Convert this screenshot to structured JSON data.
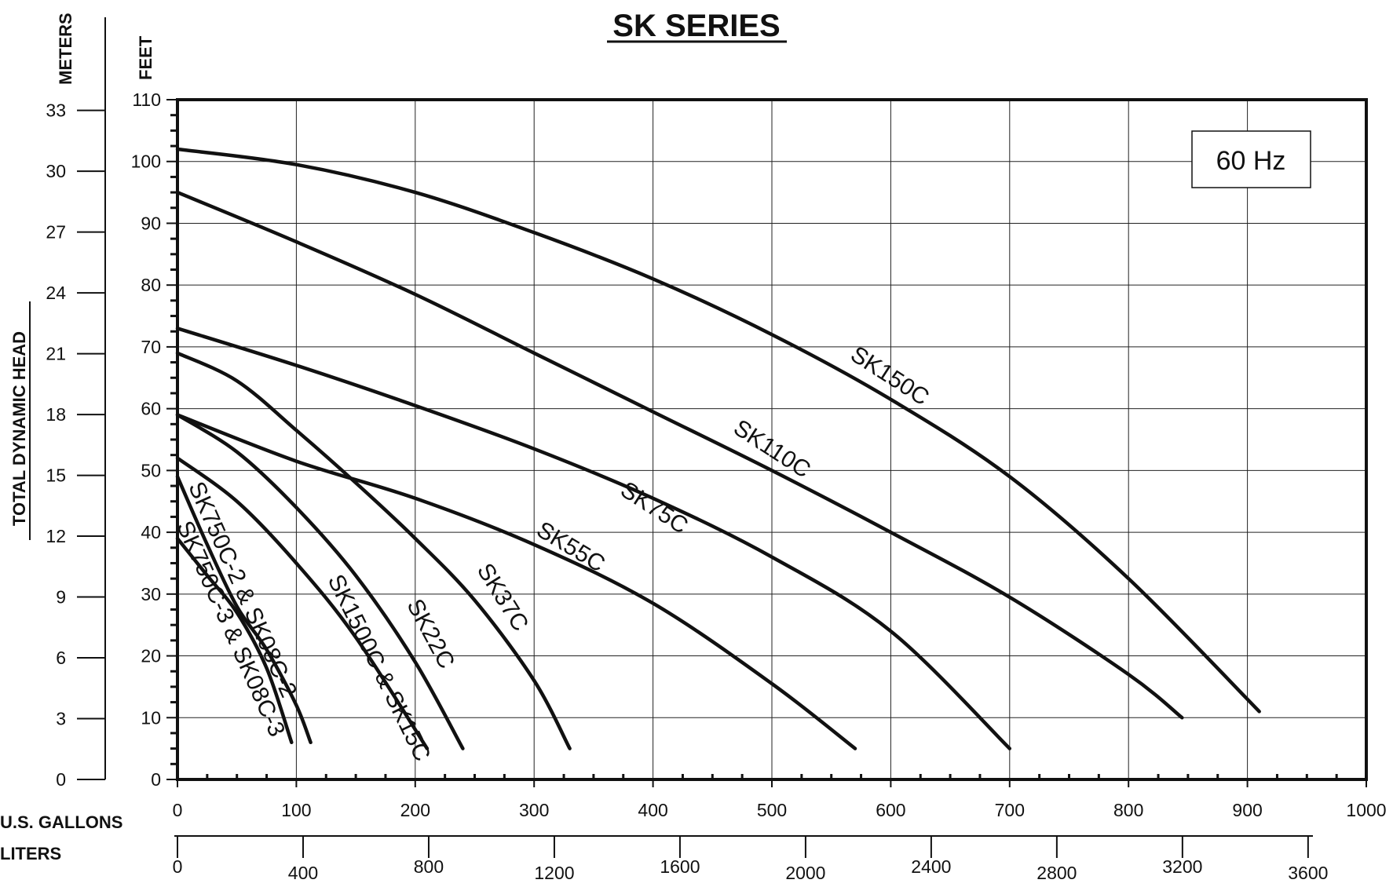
{
  "chart_data": {
    "type": "line",
    "title": "SK SERIES",
    "annotation": "60 Hz",
    "ylabel": "TOTAL DYNAMIC HEAD",
    "y_unit_feet": "FEET",
    "y_unit_meters": "METERS",
    "x_unit_gallons": "U.S. GALLONS",
    "x_unit_liters": "LITERS",
    "xlim": [
      0,
      1000
    ],
    "ylim": [
      0,
      110
    ],
    "grid": true,
    "x_ticks": [
      "0",
      "100",
      "200",
      "300",
      "400",
      "500",
      "600",
      "700",
      "800",
      "900",
      "1000"
    ],
    "y_ticks_feet": [
      "0",
      "10",
      "20",
      "30",
      "40",
      "50",
      "60",
      "70",
      "80",
      "90",
      "100",
      "110"
    ],
    "y_ticks_meters": [
      "0",
      "3",
      "6",
      "9",
      "12",
      "15",
      "18",
      "21",
      "24",
      "27",
      "30",
      "33"
    ],
    "x_ticks_liters": [
      "0",
      "400",
      "800",
      "1200",
      "1600",
      "2000",
      "2400",
      "2800",
      "3200",
      "3600"
    ],
    "series": [
      {
        "name": "SK150C",
        "x": [
          0,
          100,
          200,
          300,
          400,
          500,
          600,
          700,
          800,
          910
        ],
        "y": [
          102,
          99.5,
          95,
          88.5,
          81,
          72,
          61.5,
          49,
          32.5,
          11
        ]
      },
      {
        "name": "SK110C",
        "x": [
          0,
          100,
          200,
          300,
          400,
          500,
          600,
          700,
          800,
          845
        ],
        "y": [
          95,
          87,
          78.5,
          69,
          59.5,
          50,
          40,
          29.5,
          17,
          10
        ]
      },
      {
        "name": "SK75C",
        "x": [
          0,
          100,
          200,
          300,
          400,
          500,
          600,
          700
        ],
        "y": [
          73,
          67,
          60.5,
          53.5,
          45.5,
          36,
          24,
          5
        ]
      },
      {
        "name": "SK55C",
        "x": [
          0,
          100,
          200,
          300,
          400,
          500,
          570
        ],
        "y": [
          59,
          51.5,
          45.5,
          38,
          28.5,
          15.5,
          5
        ]
      },
      {
        "name": "SK37C",
        "x": [
          0,
          50,
          100,
          150,
          200,
          250,
          300,
          330
        ],
        "y": [
          69,
          64.5,
          56.5,
          48,
          39,
          29,
          16,
          5
        ]
      },
      {
        "name": "SK22C",
        "x": [
          0,
          50,
          100,
          150,
          200,
          240
        ],
        "y": [
          59,
          53,
          44,
          33,
          19,
          5
        ]
      },
      {
        "name": "SK1500C & SK15C",
        "x": [
          0,
          50,
          100,
          150,
          210
        ],
        "y": [
          52,
          45,
          35,
          23,
          5
        ]
      },
      {
        "name": "SK750C-2 & SK08C-2",
        "x": [
          0,
          25,
          50,
          75,
          100,
          112
        ],
        "y": [
          49,
          38,
          28,
          21,
          12,
          6
        ]
      },
      {
        "name": "SK750C-3 & SK08C-3",
        "x": [
          0,
          25,
          50,
          75,
          96
        ],
        "y": [
          39,
          33,
          27,
          18,
          6
        ]
      }
    ]
  }
}
